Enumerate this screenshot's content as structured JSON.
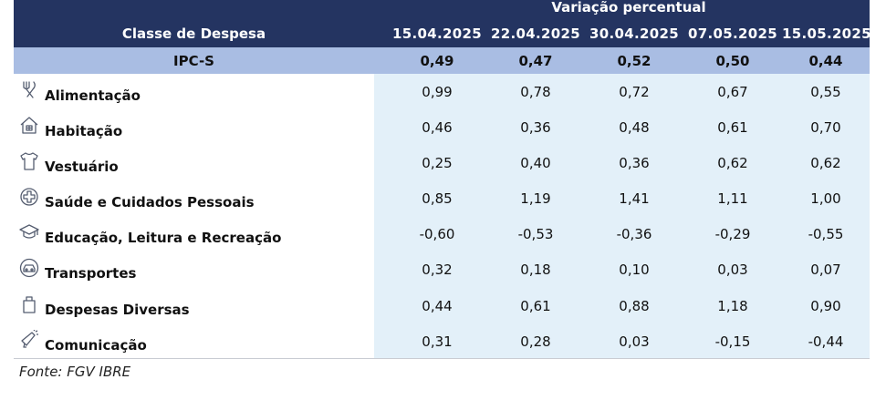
{
  "header": {
    "group_title": "Variação percentual",
    "class_title": "Classe de Despesa",
    "dates": [
      "15.04.2025",
      "22.04.2025",
      "30.04.2025",
      "07.05.2025",
      "15.05.2025"
    ]
  },
  "summary": {
    "label": "IPC-S",
    "values": [
      "0,49",
      "0,47",
      "0,52",
      "0,50",
      "0,44"
    ]
  },
  "rows": [
    {
      "label": "Alimentação",
      "icon": "utensils-icon",
      "values": [
        "0,99",
        "0,78",
        "0,72",
        "0,67",
        "0,55"
      ]
    },
    {
      "label": "Habitação",
      "icon": "house-icon",
      "values": [
        "0,46",
        "0,36",
        "0,48",
        "0,61",
        "0,70"
      ]
    },
    {
      "label": "Vestuário",
      "icon": "tshirt-icon",
      "values": [
        "0,25",
        "0,40",
        "0,36",
        "0,62",
        "0,62"
      ]
    },
    {
      "label": "Saúde e Cuidados Pessoais",
      "icon": "health-cross-icon",
      "values": [
        "0,85",
        "1,19",
        "1,41",
        "1,11",
        "1,00"
      ]
    },
    {
      "label": "Educação, Leitura e Recreação",
      "icon": "graduation-cap-icon",
      "values": [
        "-0,60",
        "-0,53",
        "-0,36",
        "-0,29",
        "-0,55"
      ]
    },
    {
      "label": "Transportes",
      "icon": "car-icon",
      "values": [
        "0,32",
        "0,18",
        "0,10",
        "0,03",
        "0,07"
      ]
    },
    {
      "label": "Despesas Diversas",
      "icon": "shopping-bag-icon",
      "values": [
        "0,44",
        "0,61",
        "0,88",
        "1,18",
        "0,90"
      ]
    },
    {
      "label": "Comunicação",
      "icon": "megaphone-icon",
      "values": [
        "0,31",
        "0,28",
        "0,03",
        "-0,15",
        "-0,44"
      ]
    }
  ],
  "source": "Fonte: FGV IBRE",
  "colors": {
    "header_bg": "#243461",
    "summary_bg": "#a9bde3",
    "values_bg": "#e3f0f9"
  }
}
